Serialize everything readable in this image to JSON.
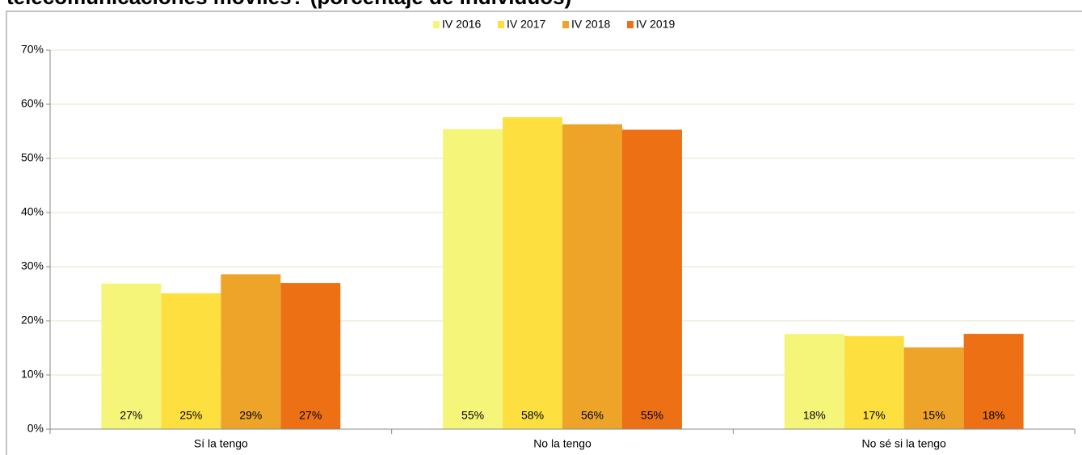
{
  "chart_data": {
    "type": "bar",
    "title": "telecomunicaciones móviles? (porcentaje de individuos)",
    "categories": [
      "Sí la tengo",
      "No la tengo",
      "No sé si la tengo"
    ],
    "series": [
      {
        "name": "IV 2016",
        "color": "#f5f57a",
        "values": [
          26.9,
          55.4,
          17.6
        ],
        "value_labels": [
          "27%",
          "55%",
          "18%"
        ]
      },
      {
        "name": "IV 2017",
        "color": "#fde040",
        "values": [
          25.1,
          57.6,
          17.2
        ],
        "value_labels": [
          "25%",
          "58%",
          "17%"
        ]
      },
      {
        "name": "IV 2018",
        "color": "#eda428",
        "values": [
          28.6,
          56.3,
          15.1
        ],
        "value_labels": [
          "29%",
          "56%",
          "15%"
        ]
      },
      {
        "name": "IV 2019",
        "color": "#ed7015",
        "values": [
          27.0,
          55.3,
          17.6
        ],
        "value_labels": [
          "27%",
          "55%",
          "18%"
        ]
      }
    ],
    "ylim": [
      0,
      70
    ],
    "yticks": [
      {
        "value": 0,
        "label": "0%"
      },
      {
        "value": 10,
        "label": "10%"
      },
      {
        "value": 20,
        "label": "20%"
      },
      {
        "value": 30,
        "label": "30%"
      },
      {
        "value": 40,
        "label": "40%"
      },
      {
        "value": 50,
        "label": "50%"
      },
      {
        "value": 60,
        "label": "60%"
      },
      {
        "value": 70,
        "label": "70%"
      }
    ],
    "grid": true,
    "legend": "top"
  }
}
